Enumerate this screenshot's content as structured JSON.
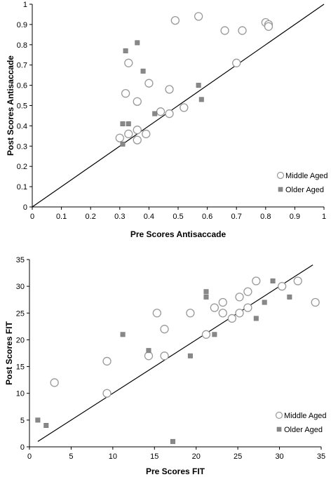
{
  "chart_data": [
    {
      "type": "scatter",
      "title": "",
      "xlabel": "Pre Scores Antisaccade",
      "ylabel": "Post Scores Antisaccade",
      "xlim": [
        0,
        1
      ],
      "ylim": [
        0,
        1
      ],
      "xticks": [
        "0",
        "0.1",
        "0.2",
        "0.3",
        "0.4",
        "0.5",
        "0.6",
        "0.7",
        "0.8",
        "0.9",
        "1"
      ],
      "yticks": [
        "0",
        "0.1",
        "0.2",
        "0.3",
        "0.4",
        "0.5",
        "0.6",
        "0.7",
        "0.8",
        "0.9",
        "1"
      ],
      "grid": false,
      "legend_position": "bottom-right",
      "reference_line": {
        "from": [
          0,
          0
        ],
        "to": [
          1,
          1
        ]
      },
      "series": [
        {
          "name": "Middle Aged",
          "marker": "open-circle",
          "color": "#999999",
          "points": [
            [
              0.3,
              0.34
            ],
            [
              0.32,
              0.56
            ],
            [
              0.33,
              0.71
            ],
            [
              0.33,
              0.36
            ],
            [
              0.36,
              0.38
            ],
            [
              0.36,
              0.33
            ],
            [
              0.36,
              0.52
            ],
            [
              0.39,
              0.36
            ],
            [
              0.4,
              0.61
            ],
            [
              0.44,
              0.47
            ],
            [
              0.47,
              0.46
            ],
            [
              0.47,
              0.58
            ],
            [
              0.49,
              0.92
            ],
            [
              0.52,
              0.49
            ],
            [
              0.57,
              0.94
            ],
            [
              0.66,
              0.87
            ],
            [
              0.7,
              0.71
            ],
            [
              0.72,
              0.87
            ],
            [
              0.8,
              0.91
            ],
            [
              0.81,
              0.9
            ],
            [
              0.81,
              0.89
            ]
          ]
        },
        {
          "name": "Older Aged",
          "marker": "filled-square",
          "color": "#888888",
          "points": [
            [
              0.31,
              0.41
            ],
            [
              0.31,
              0.31
            ],
            [
              0.32,
              0.77
            ],
            [
              0.33,
              0.41
            ],
            [
              0.36,
              0.81
            ],
            [
              0.38,
              0.67
            ],
            [
              0.42,
              0.46
            ],
            [
              0.57,
              0.6
            ],
            [
              0.58,
              0.53
            ]
          ]
        }
      ]
    },
    {
      "type": "scatter",
      "title": "",
      "xlabel": "Pre Scores FIT",
      "ylabel": "Post Scores FIT",
      "xlim": [
        0,
        35
      ],
      "ylim": [
        0,
        35
      ],
      "xticks": [
        "0",
        "5",
        "10",
        "15",
        "20",
        "25",
        "30",
        "35"
      ],
      "yticks": [
        "0",
        "5",
        "10",
        "15",
        "20",
        "25",
        "30",
        "35"
      ],
      "grid": false,
      "legend_position": "bottom-right",
      "reference_line": {
        "from": [
          1,
          1
        ],
        "to": [
          34,
          34
        ]
      },
      "series": [
        {
          "name": "Middle Aged",
          "marker": "open-circle",
          "color": "#999999",
          "points": [
            [
              3,
              12
            ],
            [
              9.3,
              16
            ],
            [
              9.3,
              10
            ],
            [
              14.3,
              17
            ],
            [
              15.3,
              25
            ],
            [
              16.2,
              22
            ],
            [
              16.2,
              17
            ],
            [
              19.3,
              25
            ],
            [
              21.2,
              21
            ],
            [
              22.2,
              26
            ],
            [
              23.2,
              27
            ],
            [
              23.2,
              25
            ],
            [
              24.3,
              24
            ],
            [
              25.2,
              28
            ],
            [
              25.2,
              25
            ],
            [
              26.2,
              29
            ],
            [
              26.2,
              26
            ],
            [
              27.2,
              31
            ],
            [
              30.3,
              30
            ],
            [
              32.2,
              31
            ],
            [
              34.3,
              27
            ]
          ]
        },
        {
          "name": "Older Aged",
          "marker": "filled-square",
          "color": "#888888",
          "points": [
            [
              1,
              5
            ],
            [
              2,
              4
            ],
            [
              11.2,
              21
            ],
            [
              14.3,
              18
            ],
            [
              17.2,
              1
            ],
            [
              19.3,
              17
            ],
            [
              21.2,
              29
            ],
            [
              21.2,
              28
            ],
            [
              22.2,
              21
            ],
            [
              27.2,
              24
            ],
            [
              28.2,
              27
            ],
            [
              29.2,
              31
            ],
            [
              31.2,
              28
            ]
          ]
        }
      ]
    }
  ]
}
